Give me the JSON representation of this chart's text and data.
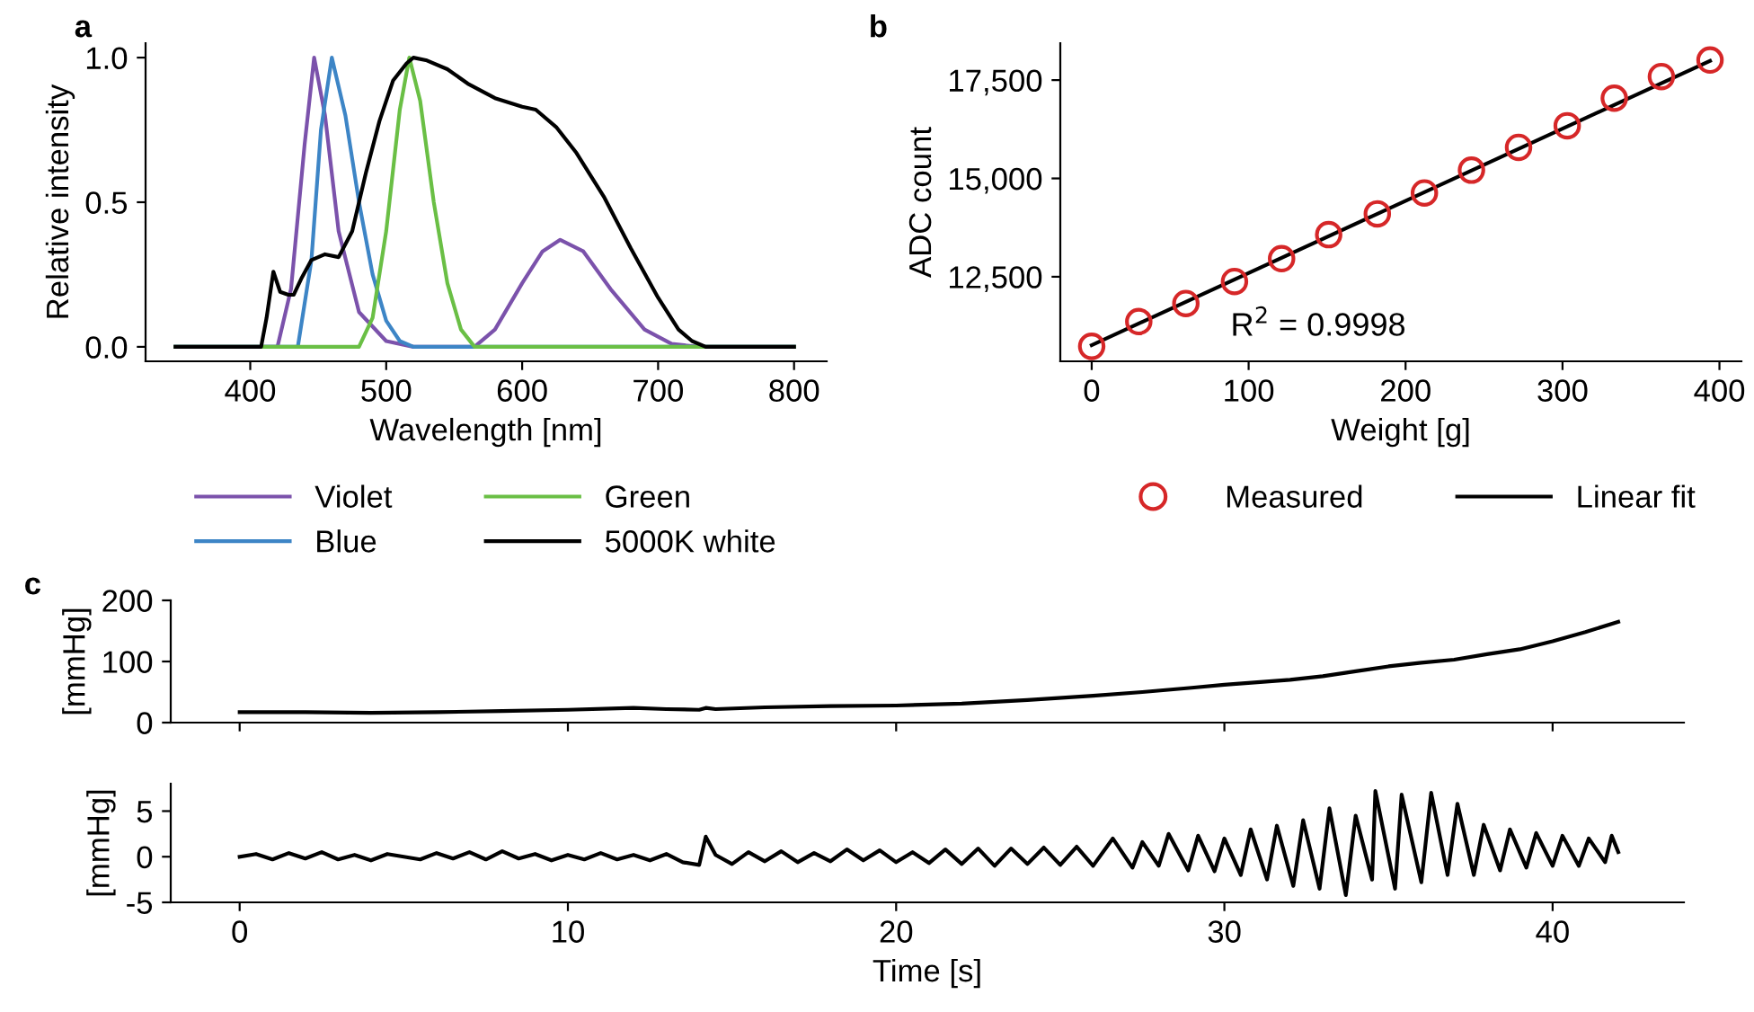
{
  "chart_data": [
    {
      "type": "line",
      "title": "a",
      "xlabel": "Wavelength [nm]",
      "ylabel": "Relative intensity",
      "xlim": [
        323,
        824
      ],
      "ylim": [
        -0.05,
        1.05
      ],
      "xticks": [
        400,
        500,
        600,
        700,
        800
      ],
      "yticks": [
        {
          "value": 0,
          "label": "0.0"
        },
        {
          "value": 0.5,
          "label": "0.5"
        },
        {
          "value": 1,
          "label": "1.0"
        }
      ],
      "grid": false,
      "legend": "bottom",
      "marker": "none",
      "line_style": "solid",
      "series": [
        {
          "name": "Violet",
          "color": "#7b52ab",
          "x": [
            345,
            420,
            430,
            440,
            447,
            455,
            465,
            480,
            500,
            520,
            565,
            580,
            600,
            615,
            628,
            645,
            665,
            690,
            710,
            730,
            800
          ],
          "values": [
            0,
            0,
            0.2,
            0.7,
            1.0,
            0.8,
            0.4,
            0.12,
            0.02,
            0,
            0,
            0.06,
            0.22,
            0.33,
            0.37,
            0.33,
            0.2,
            0.06,
            0.01,
            0,
            0
          ]
        },
        {
          "name": "Blue",
          "color": "#3d85c6",
          "x": [
            345,
            435,
            445,
            452,
            460,
            470,
            480,
            490,
            500,
            510,
            520,
            800
          ],
          "values": [
            0,
            0,
            0.3,
            0.75,
            1.0,
            0.8,
            0.5,
            0.25,
            0.09,
            0.02,
            0,
            0
          ]
        },
        {
          "name": "Green",
          "color": "#6abf45",
          "x": [
            345,
            480,
            490,
            500,
            510,
            517,
            525,
            535,
            545,
            555,
            565,
            800
          ],
          "values": [
            0,
            0,
            0.1,
            0.4,
            0.82,
            1.0,
            0.85,
            0.5,
            0.22,
            0.06,
            0,
            0
          ]
        },
        {
          "name": "5000K white",
          "color": "#000000",
          "x": [
            345,
            408,
            412,
            417,
            422,
            428,
            432,
            438,
            445,
            455,
            465,
            475,
            485,
            495,
            505,
            515,
            520,
            530,
            545,
            560,
            580,
            600,
            610,
            625,
            640,
            660,
            680,
            700,
            715,
            725,
            735,
            800
          ],
          "values": [
            0,
            0,
            0.1,
            0.26,
            0.19,
            0.18,
            0.18,
            0.24,
            0.3,
            0.32,
            0.31,
            0.4,
            0.6,
            0.78,
            0.92,
            0.98,
            1.0,
            0.99,
            0.96,
            0.91,
            0.86,
            0.83,
            0.82,
            0.76,
            0.67,
            0.52,
            0.34,
            0.17,
            0.06,
            0.02,
            0,
            0
          ]
        }
      ]
    },
    {
      "type": "scatter",
      "title": "b",
      "xlabel": "Weight [g]",
      "ylabel": "ADC count",
      "xlim": [
        -20,
        414
      ],
      "ylim": [
        10350,
        18440
      ],
      "xticks": [
        0,
        100,
        200,
        300,
        400
      ],
      "yticks": [
        {
          "value": 12500,
          "label": "12,500"
        },
        {
          "value": 15000,
          "label": "15,000"
        },
        {
          "value": 17500,
          "label": "17,500"
        }
      ],
      "grid": false,
      "legend": "bottom",
      "annotations": [
        "R$^{2}$ = 0.9998"
      ],
      "series": [
        {
          "name": "Measured",
          "type": "scatter",
          "marker": "circle",
          "color": "#d62728",
          "x": [
            0,
            30,
            60,
            91,
            121,
            151,
            182,
            212,
            242,
            272,
            303,
            333,
            363,
            394
          ],
          "values": [
            10730,
            11360,
            11820,
            12380,
            12960,
            13570,
            14100,
            14630,
            15210,
            15790,
            16340,
            17040,
            17590,
            18010
          ]
        },
        {
          "name": "Linear fit",
          "type": "line",
          "marker": "none",
          "color": "#000000",
          "x": [
            0,
            394
          ],
          "values": [
            10760,
            17990
          ]
        }
      ]
    },
    {
      "type": "line",
      "title": "c",
      "ylabel": "[mmHg]",
      "xlim": [
        -2.1,
        44
      ],
      "ylim": [
        0,
        200
      ],
      "xticks": [
        0,
        10,
        20,
        30,
        40
      ],
      "yticks": [
        0,
        100,
        200
      ],
      "tick_labels": "y",
      "grid": false,
      "marker": "none",
      "series": [
        {
          "color": "#000000",
          "x": [
            0,
            2,
            4,
            6,
            8,
            10,
            12,
            13,
            14,
            14.2,
            14.5,
            16,
            18,
            20,
            22,
            24,
            26,
            27.5,
            29,
            30,
            31,
            32,
            33,
            34,
            35,
            36,
            37,
            38,
            39,
            40,
            41,
            42
          ],
          "values": [
            17,
            17,
            16,
            17,
            19,
            21,
            24,
            22,
            21,
            24,
            22,
            25,
            27,
            28,
            31,
            37,
            44,
            50,
            57,
            62,
            66,
            70,
            76,
            84,
            92,
            98,
            103,
            112,
            120,
            133,
            148,
            165
          ]
        }
      ]
    },
    {
      "type": "line",
      "xlabel": "Time [s]",
      "ylabel": "[mmHg]",
      "xlim": [
        -2.1,
        44
      ],
      "ylim": [
        -5,
        8
      ],
      "xticks": [
        0,
        10,
        20,
        30,
        40
      ],
      "yticks": [
        {
          "value": -5,
          "label": "-5"
        },
        0,
        5
      ],
      "grid": false,
      "marker": "none",
      "series": [
        {
          "color": "#000000",
          "x": [
            0,
            0.5,
            1,
            1.5,
            2,
            2.5,
            3,
            3.5,
            4,
            4.5,
            5,
            5.5,
            6,
            6.5,
            7,
            7.5,
            8,
            8.5,
            9,
            9.5,
            10,
            10.5,
            11,
            11.5,
            12,
            12.5,
            13,
            13.5,
            14,
            14.2,
            14.5,
            15,
            15.5,
            16,
            16.5,
            17,
            17.5,
            18,
            18.5,
            19,
            19.5,
            20,
            20.5,
            21,
            21.5,
            22,
            22.5,
            23,
            23.5,
            24,
            24.5,
            25,
            25.5,
            26,
            26.6,
            27.2,
            27.5,
            28,
            28.3,
            28.9,
            29.2,
            29.7,
            30,
            30.5,
            30.8,
            31.3,
            31.6,
            32.1,
            32.4,
            32.9,
            33.2,
            33.7,
            34,
            34.5,
            34.6,
            35.2,
            35.4,
            36,
            36.3,
            36.8,
            37.1,
            37.6,
            37.9,
            38.4,
            38.7,
            39.2,
            39.5,
            40,
            40.3,
            40.8,
            41.1,
            41.6,
            41.8,
            42
          ],
          "values": [
            0,
            0.3,
            -0.3,
            0.4,
            -0.2,
            0.5,
            -0.3,
            0.2,
            -0.4,
            0.3,
            0,
            -0.3,
            0.4,
            -0.2,
            0.5,
            -0.3,
            0.6,
            -0.2,
            0.3,
            -0.4,
            0.2,
            -0.3,
            0.4,
            -0.3,
            0.2,
            -0.4,
            0.3,
            -0.6,
            -0.9,
            2.2,
            0.2,
            -0.8,
            0.5,
            -0.5,
            0.6,
            -0.6,
            0.4,
            -0.5,
            0.8,
            -0.4,
            0.7,
            -0.6,
            0.5,
            -0.7,
            0.8,
            -0.8,
            0.9,
            -1.0,
            0.9,
            -0.8,
            1.0,
            -0.9,
            1.1,
            -1.0,
            2.0,
            -1.2,
            1.6,
            -1.0,
            2.5,
            -1.5,
            2.3,
            -1.6,
            2.0,
            -2.0,
            3.0,
            -2.5,
            3.4,
            -3.2,
            4.0,
            -3.5,
            5.3,
            -4.2,
            4.5,
            -2.5,
            7.2,
            -3.5,
            6.8,
            -2.8,
            7.0,
            -2.0,
            5.8,
            -2.0,
            3.5,
            -1.5,
            3.0,
            -1.2,
            2.6,
            -1.0,
            2.3,
            -1.0,
            2.0,
            -0.6,
            2.3,
            0.5
          ]
        }
      ]
    }
  ]
}
